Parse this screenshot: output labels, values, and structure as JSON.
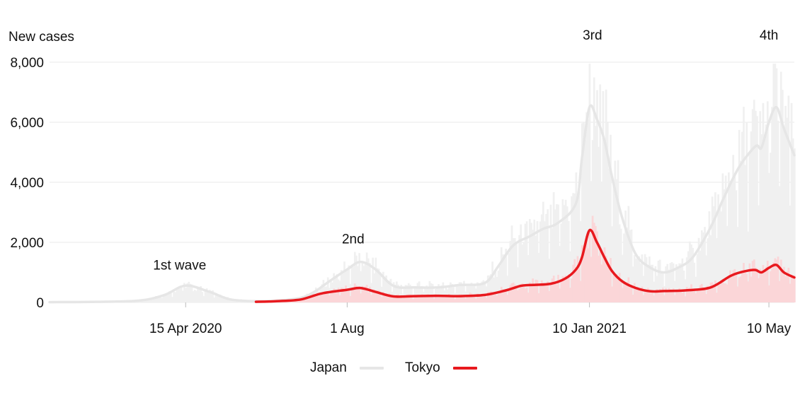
{
  "chart_data": {
    "type": "line",
    "ylabel": "New cases",
    "ylim": [
      0,
      8000
    ],
    "yticks": [
      0,
      2000,
      4000,
      6000,
      8000
    ],
    "ytick_labels": [
      "0",
      "2,000",
      "4,000",
      "6,000",
      "8,000"
    ],
    "x_start": "2020-01-15",
    "x_end": "2021-05-27",
    "xticks": [
      {
        "date": "2020-04-15",
        "label": "15 Apr 2020"
      },
      {
        "date": "2020-08-01",
        "label": "1 Aug"
      },
      {
        "date": "2021-01-10",
        "label": "10 Jan 2021"
      },
      {
        "date": "2021-05-10",
        "label": "10 May"
      }
    ],
    "annotations": [
      {
        "date": "2020-04-11",
        "value": 1100,
        "text": "1st wave"
      },
      {
        "date": "2020-08-05",
        "value": 1970,
        "text": "2nd"
      },
      {
        "date": "2021-01-12",
        "value": 8750,
        "text": "3rd"
      },
      {
        "date": "2021-05-10",
        "value": 8750,
        "text": "4th"
      }
    ],
    "grid": true,
    "legend_position": "bottom",
    "series": [
      {
        "name": "Japan",
        "color": "#e6e6e6",
        "bar_color": "#f0f0f0",
        "x": [
          "2020-01-15",
          "2020-02-15",
          "2020-03-15",
          "2020-04-01",
          "2020-04-15",
          "2020-05-01",
          "2020-05-15",
          "2020-06-01",
          "2020-06-15",
          "2020-07-01",
          "2020-07-10",
          "2020-07-20",
          "2020-08-01",
          "2020-08-10",
          "2020-08-20",
          "2020-09-01",
          "2020-09-15",
          "2020-10-01",
          "2020-10-15",
          "2020-11-01",
          "2020-11-10",
          "2020-11-20",
          "2020-12-01",
          "2020-12-10",
          "2020-12-20",
          "2021-01-01",
          "2021-01-05",
          "2021-01-10",
          "2021-01-15",
          "2021-01-20",
          "2021-01-25",
          "2021-02-01",
          "2021-02-10",
          "2021-02-20",
          "2021-03-01",
          "2021-03-10",
          "2021-03-20",
          "2021-04-01",
          "2021-04-10",
          "2021-04-20",
          "2021-05-01",
          "2021-05-05",
          "2021-05-10",
          "2021-05-15",
          "2021-05-20",
          "2021-05-27"
        ],
        "values": [
          10,
          20,
          60,
          250,
          560,
          350,
          100,
          40,
          60,
          150,
          350,
          700,
          1100,
          1350,
          1100,
          550,
          500,
          500,
          580,
          650,
          1200,
          1900,
          2200,
          2450,
          2650,
          3300,
          4800,
          6500,
          6100,
          5400,
          4200,
          2800,
          1600,
          1150,
          1000,
          1150,
          1500,
          2500,
          3500,
          4500,
          5200,
          5150,
          6000,
          6500,
          5800,
          4900
        ]
      },
      {
        "name": "Tokyo",
        "color": "#e8191e",
        "bar_color": "#fbd6d8",
        "x": [
          "2020-06-01",
          "2020-06-15",
          "2020-07-01",
          "2020-07-15",
          "2020-08-01",
          "2020-08-10",
          "2020-08-20",
          "2020-09-01",
          "2020-09-15",
          "2020-10-01",
          "2020-10-15",
          "2020-11-01",
          "2020-11-15",
          "2020-11-25",
          "2020-12-01",
          "2020-12-15",
          "2020-12-25",
          "2021-01-01",
          "2021-01-05",
          "2021-01-10",
          "2021-01-15",
          "2021-01-20",
          "2021-01-25",
          "2021-02-01",
          "2021-02-10",
          "2021-02-20",
          "2021-03-01",
          "2021-03-15",
          "2021-04-01",
          "2021-04-15",
          "2021-04-25",
          "2021-05-01",
          "2021-05-05",
          "2021-05-10",
          "2021-05-15",
          "2021-05-20",
          "2021-05-27"
        ],
        "values": [
          20,
          40,
          100,
          300,
          420,
          480,
          350,
          200,
          210,
          220,
          210,
          250,
          400,
          550,
          580,
          620,
          800,
          1100,
          1500,
          2400,
          2000,
          1500,
          1050,
          700,
          480,
          370,
          380,
          400,
          500,
          900,
          1050,
          1080,
          1000,
          1150,
          1250,
          1000,
          830
        ]
      }
    ]
  }
}
